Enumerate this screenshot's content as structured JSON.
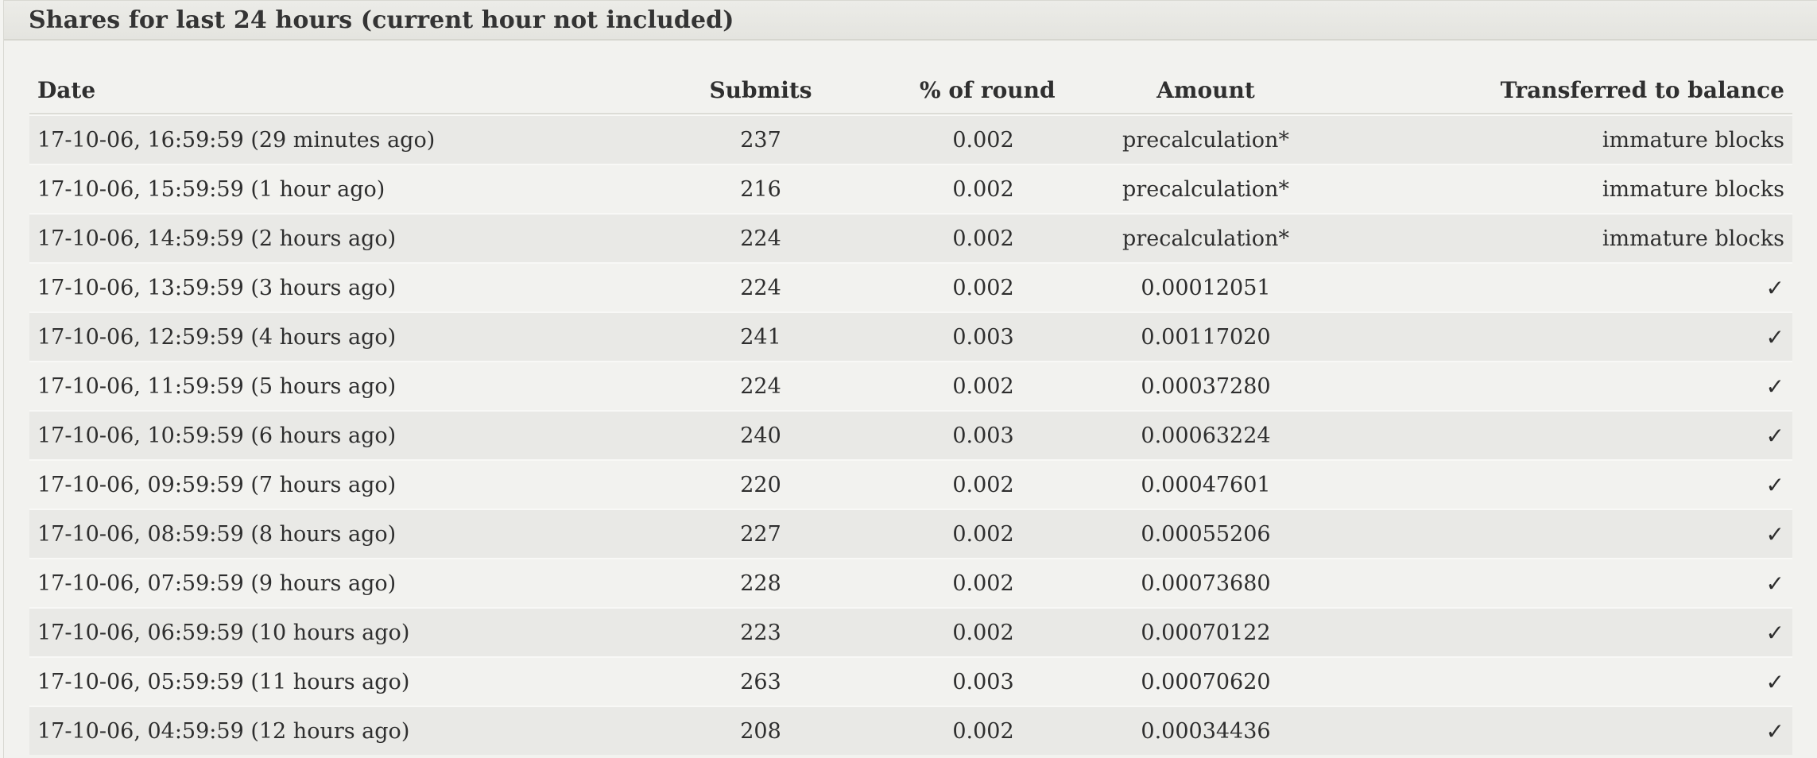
{
  "panel": {
    "title": "Shares for last 24 hours (current hour not included)"
  },
  "table": {
    "headers": {
      "date": "Date",
      "submits": "Submits",
      "percent": "% of round",
      "amount": "Amount",
      "transferred": "Transferred to balance"
    },
    "rows": [
      {
        "date": "17-10-06, 16:59:59 (29 minutes ago)",
        "submits": "237",
        "percent": "0.002",
        "amount": "precalculation*",
        "transferred": "immature blocks"
      },
      {
        "date": "17-10-06, 15:59:59 (1 hour ago)",
        "submits": "216",
        "percent": "0.002",
        "amount": "precalculation*",
        "transferred": "immature blocks"
      },
      {
        "date": "17-10-06, 14:59:59 (2 hours ago)",
        "submits": "224",
        "percent": "0.002",
        "amount": "precalculation*",
        "transferred": "immature blocks"
      },
      {
        "date": "17-10-06, 13:59:59 (3 hours ago)",
        "submits": "224",
        "percent": "0.002",
        "amount": "0.00012051",
        "transferred": "✓"
      },
      {
        "date": "17-10-06, 12:59:59 (4 hours ago)",
        "submits": "241",
        "percent": "0.003",
        "amount": "0.00117020",
        "transferred": "✓"
      },
      {
        "date": "17-10-06, 11:59:59 (5 hours ago)",
        "submits": "224",
        "percent": "0.002",
        "amount": "0.00037280",
        "transferred": "✓"
      },
      {
        "date": "17-10-06, 10:59:59 (6 hours ago)",
        "submits": "240",
        "percent": "0.003",
        "amount": "0.00063224",
        "transferred": "✓"
      },
      {
        "date": "17-10-06, 09:59:59 (7 hours ago)",
        "submits": "220",
        "percent": "0.002",
        "amount": "0.00047601",
        "transferred": "✓"
      },
      {
        "date": "17-10-06, 08:59:59 (8 hours ago)",
        "submits": "227",
        "percent": "0.002",
        "amount": "0.00055206",
        "transferred": "✓"
      },
      {
        "date": "17-10-06, 07:59:59 (9 hours ago)",
        "submits": "228",
        "percent": "0.002",
        "amount": "0.00073680",
        "transferred": "✓"
      },
      {
        "date": "17-10-06, 06:59:59 (10 hours ago)",
        "submits": "223",
        "percent": "0.002",
        "amount": "0.00070122",
        "transferred": "✓"
      },
      {
        "date": "17-10-06, 05:59:59 (11 hours ago)",
        "submits": "263",
        "percent": "0.003",
        "amount": "0.00070620",
        "transferred": "✓"
      },
      {
        "date": "17-10-06, 04:59:59 (12 hours ago)",
        "submits": "208",
        "percent": "0.002",
        "amount": "0.00034436",
        "transferred": "✓"
      }
    ]
  }
}
